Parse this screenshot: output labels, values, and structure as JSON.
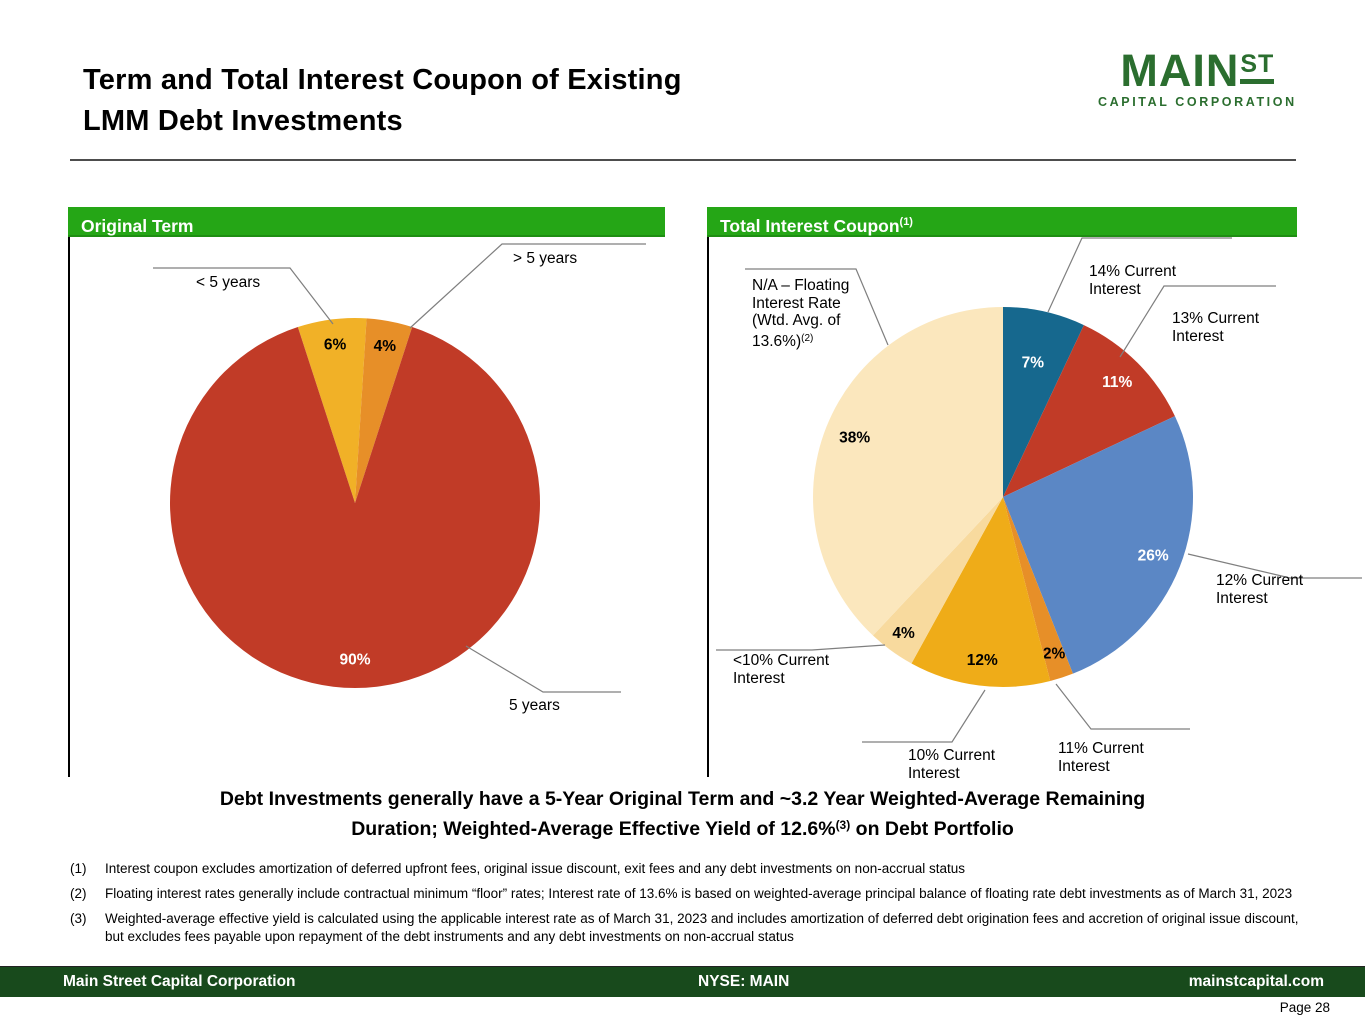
{
  "slide": {
    "title_line1": "Term and Total Interest Coupon of Existing",
    "title_line2": "LMM Debt Investments",
    "logo": {
      "main": "MAIN",
      "st": "ST",
      "sub": "CAPITAL CORPORATION"
    },
    "statement_line1": "Debt Investments generally have a 5-Year Original Term and ~3.2 Year Weighted-Average Remaining",
    "statement_line2_pre": "Duration; Weighted-Average Effective Yield of 12.6%",
    "statement_line2_sup": "(3)",
    "statement_line2_post": " on Debt Portfolio",
    "footnotes": [
      {
        "num": "(1)",
        "text": "Interest coupon excludes amortization of deferred upfront fees, original issue discount, exit fees and any debt investments on non-accrual status"
      },
      {
        "num": "(2)",
        "text": "Floating interest rates generally include contractual minimum “floor” rates; Interest rate of 13.6% is based on weighted-average principal balance of floating rate debt investments as of March 31, 2023"
      },
      {
        "num": "(3)",
        "text": "Weighted-average effective yield is calculated using the applicable interest rate as of March 31, 2023 and includes amortization of deferred debt origination fees and accretion of original issue discount, but excludes fees payable upon repayment of the debt instruments and any debt investments on non-accrual status"
      }
    ],
    "footer": {
      "left": "Main Street Capital Corporation",
      "center": "NYSE: MAIN",
      "right": "mainstcapital.com",
      "page": "Page  28"
    },
    "colors": {
      "header_green": "#25A616",
      "footer_green": "#184A1C",
      "logo_green": "#2B6E2F"
    }
  },
  "chart_data": [
    {
      "id": "original_term",
      "type": "pie",
      "title": "Original Term",
      "title_sup": "",
      "start_angle": -18,
      "legend_position": "callouts",
      "slices": [
        {
          "label": "< 5 years",
          "value": 6,
          "color": "#F1B127",
          "text_color": "#000000",
          "label_r": 0.86
        },
        {
          "label": "> 5 years",
          "value": 4,
          "color": "#E78F28",
          "text_color": "#000000",
          "label_r": 0.86
        },
        {
          "label": "5 years",
          "value": 90,
          "color": "#C13B27",
          "text_color": "#FFFFFF",
          "label_r": 0.85
        }
      ]
    },
    {
      "id": "total_interest_coupon",
      "type": "pie",
      "title": "Total Interest Coupon",
      "title_sup": "(1)",
      "start_angle": 0,
      "legend_position": "callouts",
      "slices": [
        {
          "label": "14% Current Interest",
          "value": 7,
          "color": "#16688E",
          "text_color": "#FFFFFF",
          "label_r": 0.72
        },
        {
          "label": "13% Current Interest",
          "value": 11,
          "color": "#C13B27",
          "text_color": "#FFFFFF",
          "label_r": 0.85
        },
        {
          "label": "12% Current Interest",
          "value": 26,
          "color": "#5B87C5",
          "text_color": "#FFFFFF",
          "label_r": 0.85
        },
        {
          "label": "11% Current Interest",
          "value": 2,
          "color": "#E78F28",
          "text_color": "#000000",
          "label_r": 0.87
        },
        {
          "label": "10% Current Interest",
          "value": 12,
          "color": "#EFAC18",
          "text_color": "#000000",
          "label_r": 0.87
        },
        {
          "label": "<10% Current Interest",
          "value": 4,
          "color": "#F8DA9E",
          "text_color": "#000000",
          "label_r": 0.89
        },
        {
          "label": "N/A – Floating Interest Rate (Wtd. Avg. of 13.6%)",
          "label_sup": "(2)",
          "value": 38,
          "color": "#FBE7BD",
          "text_color": "#000000",
          "label_r": 0.84
        }
      ]
    }
  ]
}
